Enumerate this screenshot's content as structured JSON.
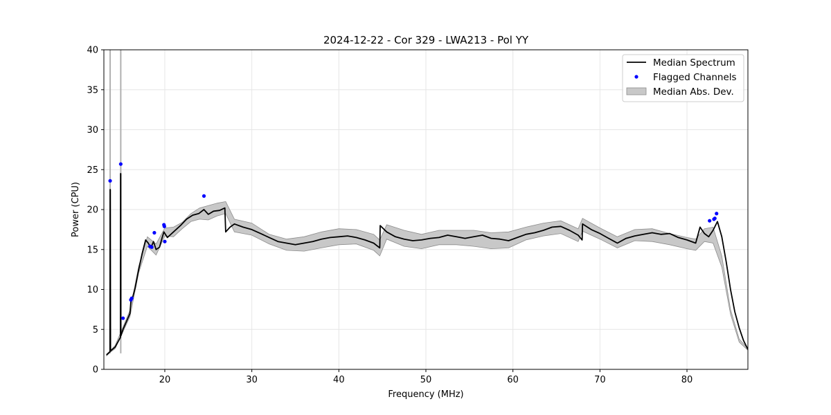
{
  "chart_data": {
    "type": "line",
    "title": "2024-12-22 - Cor 329 - LWA213 - Pol YY",
    "xlabel": "Frequency (MHz)",
    "ylabel": "Power (CPU)",
    "xlim": [
      13,
      87
    ],
    "ylim": [
      0,
      40
    ],
    "xticks": [
      20,
      30,
      40,
      50,
      60,
      70,
      80
    ],
    "yticks": [
      0,
      5,
      10,
      15,
      20,
      25,
      30,
      35,
      40
    ],
    "grid": true,
    "legend_position": "top-right",
    "legend": [
      "Median Spectrum",
      "Flagged Channels",
      "Median Abs. Dev."
    ],
    "colors": {
      "median": "#000000",
      "flagged": "#0000ff",
      "mad_fill": "#c8c8c8",
      "mad_edge": "#8c8c8c"
    },
    "series": [
      {
        "name": "Median Spectrum",
        "x": [
          13.3,
          13.7,
          13.72,
          13.74,
          13.76,
          14.3,
          14.9,
          14.92,
          14.94,
          14.96,
          15.2,
          15.6,
          16.0,
          16.1,
          16.3,
          16.6,
          17.0,
          17.4,
          17.8,
          18.1,
          18.4,
          18.7,
          19.0,
          19.4,
          19.7,
          19.9,
          20.3,
          21.0,
          21.8,
          22.5,
          23.2,
          23.9,
          24.5,
          25.0,
          25.6,
          26.3,
          26.9,
          27.0,
          27.5,
          28.0,
          29.0,
          30.0,
          31.0,
          32.0,
          33.0,
          34.0,
          35.0,
          36.0,
          37.0,
          38.0,
          39.0,
          40.0,
          41.0,
          42.0,
          43.0,
          44.0,
          44.7,
          44.75,
          45.5,
          46.5,
          47.5,
          48.5,
          49.5,
          50.5,
          51.5,
          52.5,
          53.5,
          54.5,
          55.5,
          56.5,
          57.5,
          58.5,
          59.5,
          60.5,
          61.5,
          62.5,
          63.5,
          64.5,
          65.5,
          66.5,
          67.5,
          67.95,
          68.0,
          69.0,
          70.0,
          71.0,
          72.0,
          73.0,
          74.0,
          75.0,
          76.0,
          77.0,
          78.0,
          79.0,
          80.0,
          81.0,
          81.5,
          82.0,
          82.5,
          83.0,
          83.5,
          84.0,
          84.5,
          85.0,
          85.5,
          86.0,
          86.5,
          87.0
        ],
        "y": [
          1.8,
          2.2,
          22.5,
          22.5,
          2.3,
          2.8,
          4.0,
          24.5,
          24.5,
          4.2,
          5.0,
          6.0,
          7.0,
          8.5,
          9.0,
          10.2,
          12.5,
          14.5,
          16.2,
          15.8,
          15.2,
          16.0,
          15.0,
          15.3,
          16.5,
          17.2,
          16.5,
          17.2,
          18.0,
          18.8,
          19.3,
          19.5,
          20.0,
          19.4,
          19.8,
          19.9,
          20.2,
          17.2,
          17.8,
          18.2,
          17.8,
          17.5,
          17.0,
          16.5,
          16.0,
          15.8,
          15.6,
          15.8,
          16.0,
          16.3,
          16.5,
          16.6,
          16.7,
          16.5,
          16.2,
          15.8,
          15.2,
          18.0,
          17.2,
          16.6,
          16.3,
          16.1,
          16.2,
          16.4,
          16.5,
          16.8,
          16.6,
          16.4,
          16.6,
          16.8,
          16.4,
          16.3,
          16.1,
          16.5,
          16.9,
          17.1,
          17.4,
          17.8,
          17.9,
          17.4,
          16.8,
          16.2,
          18.2,
          17.5,
          17.0,
          16.4,
          15.8,
          16.4,
          16.7,
          16.9,
          17.1,
          16.9,
          17.0,
          16.5,
          16.2,
          15.8,
          17.8,
          17.0,
          16.6,
          17.4,
          18.5,
          16.6,
          13.5,
          10.0,
          7.2,
          5.2,
          3.6,
          2.5
        ]
      }
    ],
    "mad_band": {
      "name": "Median Abs. Dev.",
      "x": [
        13.3,
        13.7,
        14.3,
        15.2,
        16.0,
        17.0,
        18.0,
        19.0,
        20.0,
        21.0,
        22.0,
        23.0,
        24.0,
        25.0,
        26.0,
        27.0,
        28.0,
        30.0,
        32.0,
        34.0,
        36.0,
        38.0,
        40.0,
        42.0,
        44.0,
        44.7,
        45.5,
        47.5,
        49.5,
        51.5,
        53.5,
        55.5,
        57.5,
        59.5,
        61.5,
        63.5,
        65.5,
        67.5,
        68.0,
        70.0,
        72.0,
        74.0,
        76.0,
        78.0,
        80.0,
        81.0,
        82.0,
        83.0,
        84.0,
        85.0,
        86.0,
        87.0
      ],
      "lower": [
        1.7,
        2.1,
        2.6,
        4.7,
        6.6,
        12.1,
        15.4,
        14.3,
        16.7,
        16.6,
        17.6,
        18.5,
        18.8,
        18.7,
        19.2,
        19.5,
        17.2,
        16.8,
        15.7,
        14.9,
        14.8,
        15.2,
        15.6,
        15.7,
        14.9,
        14.2,
        16.3,
        15.4,
        15.1,
        15.6,
        15.6,
        15.4,
        15.1,
        15.2,
        16.2,
        16.7,
        17.0,
        16.0,
        17.3,
        16.3,
        15.2,
        16.1,
        16.0,
        15.6,
        15.1,
        14.9,
        16.0,
        15.8,
        12.8,
        6.9,
        3.4,
        2.4
      ],
      "upper": [
        1.9,
        2.3,
        3.0,
        5.3,
        7.4,
        12.9,
        16.6,
        15.7,
        17.7,
        17.8,
        18.4,
        19.5,
        20.2,
        20.5,
        20.8,
        21.0,
        18.8,
        18.3,
        16.9,
        16.3,
        16.6,
        17.2,
        17.6,
        17.5,
        16.9,
        16.2,
        18.1,
        17.4,
        16.9,
        17.4,
        17.4,
        17.4,
        17.1,
        17.2,
        17.8,
        18.3,
        18.6,
        17.6,
        18.9,
        17.7,
        16.6,
        17.5,
        17.6,
        17.0,
        16.5,
        16.3,
        17.6,
        17.8,
        14.2,
        7.5,
        3.8,
        2.6
      ]
    },
    "mad_spikes": [
      {
        "x": 13.72,
        "top": 40.0
      },
      {
        "x": 14.94,
        "top": 40.0
      }
    ],
    "flagged_channels": {
      "name": "Flagged Channels",
      "x": [
        13.72,
        14.94,
        15.2,
        16.1,
        16.2,
        18.3,
        18.5,
        18.8,
        19.9,
        19.95,
        20.0,
        24.5,
        82.6,
        83.1,
        83.2,
        83.4
      ],
      "y": [
        23.6,
        25.7,
        6.4,
        8.7,
        8.9,
        15.4,
        15.3,
        17.1,
        18.1,
        17.9,
        16.0,
        21.7,
        18.6,
        18.8,
        18.9,
        19.5
      ]
    }
  }
}
